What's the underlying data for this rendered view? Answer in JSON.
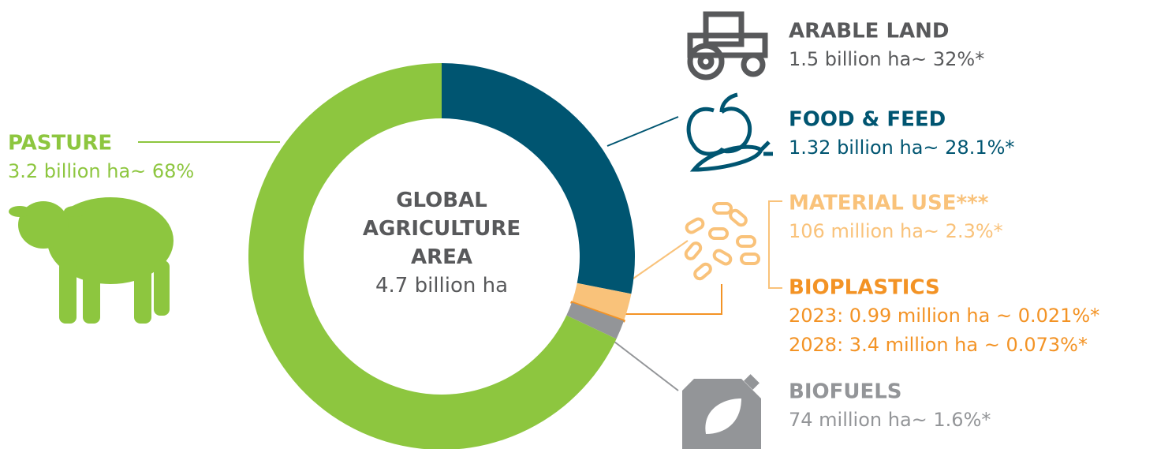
{
  "chart_data": {
    "type": "donut",
    "title": "GLOBAL AGRICULTURE AREA",
    "subtitle": "4.7 billion ha",
    "categories": [
      "FOOD & FEED",
      "MATERIAL USE***",
      "BIOPLASTICS",
      "BIOFUELS",
      "PASTURE"
    ],
    "values": [
      28.1,
      2.3,
      0.021,
      1.6,
      68
    ],
    "value_labels": [
      "1.32 billion ha~ 28.1%*",
      "106 million ha~ 2.3%*",
      "2023: 0.99 million ha ~ 0.021%*",
      "74 million ha~ 1.6%*",
      "3.2 billion ha~ 68%"
    ],
    "colors": [
      "#005571",
      "#f9c27a",
      "#f39325",
      "#939598",
      "#8dc63f"
    ],
    "annotations": [
      {
        "title": "ARABLE LAND",
        "text": "1.5 billion ha~ 32%*"
      },
      {
        "text": "2028: 3.4 million ha ~ 0.073%*"
      }
    ]
  }
}
